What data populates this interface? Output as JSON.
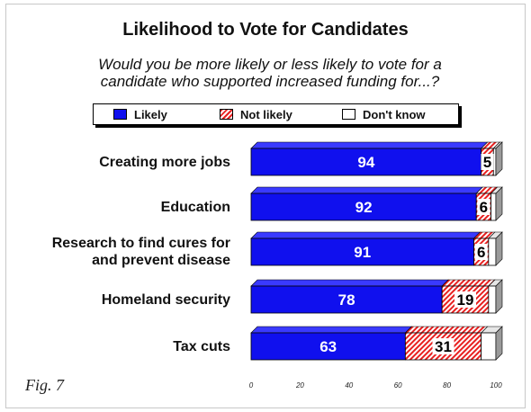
{
  "header": {
    "title": "Likelihood to Vote for Candidates",
    "subtitle": "Would you be more likely or less likely to vote for a candidate who supported increased funding for...?"
  },
  "legend": {
    "likely": "Likely",
    "not_likely": "Not likely",
    "dont_know": "Don't know"
  },
  "figure_label": "Fig. 7",
  "colors": {
    "likely": "#1010ee",
    "not_likely": "#e82020",
    "dont_know": "#ffffff"
  },
  "chart_data": {
    "type": "bar",
    "orientation": "horizontal",
    "stacked": true,
    "categories": [
      "Creating more jobs",
      "Education",
      "Research to find cures for and prevent disease",
      "Homeland security",
      "Tax cuts"
    ],
    "series": [
      {
        "name": "Likely",
        "values": [
          94,
          92,
          91,
          78,
          63
        ]
      },
      {
        "name": "Not likely",
        "values": [
          5,
          6,
          6,
          19,
          31
        ]
      },
      {
        "name": "Don't know",
        "values": [
          1,
          2,
          3,
          3,
          6
        ]
      }
    ],
    "xlim": [
      0,
      100
    ],
    "xticks": [
      0,
      20,
      40,
      60,
      80,
      100
    ],
    "legend_position": "top"
  }
}
